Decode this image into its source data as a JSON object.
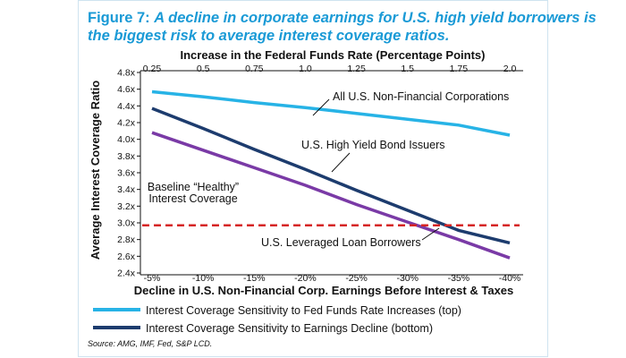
{
  "figure": {
    "title_prefix": "Figure 7: ",
    "title_line1": "A decline in corporate earnings for U.S. high yield borrowers is",
    "title_line2": "the biggest risk to average interest coverage ratios.",
    "source": "Source: AMG, IMF, Fed, S&P LCD."
  },
  "colors": {
    "title": "#1a9ad6",
    "top_series": "#27b3e6",
    "bottom_series": "#1d3c6e",
    "loan_series": "#7a3aa6",
    "baseline": "#d62424",
    "legend_bottom": "#1d3c6e"
  },
  "chart_data": {
    "type": "line",
    "title": "A decline in corporate earnings for U.S. high yield borrowers is the biggest risk to average interest coverage ratios.",
    "x_top": {
      "label": "Increase in the Federal Funds Rate (Percentage Points)",
      "ticks": [
        "0.25",
        "0.5",
        "0.75",
        "1.0",
        "1.25",
        "1.5",
        "1.75",
        "2.0"
      ]
    },
    "x_bottom": {
      "label": "Decline in U.S. Non-Financial Corp. Earnings Before Interest & Taxes",
      "ticks": [
        "-5%",
        "-10%",
        "-15%",
        "-20%",
        "-25%",
        "-30%",
        "-35%",
        "-40%"
      ]
    },
    "y": {
      "label": "Average Interest Coverage Ratio",
      "ticks": [
        "2.4x",
        "2.6x",
        "2.8x",
        "3.0x",
        "3.2x",
        "3.4x",
        "3.6x",
        "3.8x",
        "4.0x",
        "4.2x",
        "4.4x",
        "4.6x",
        "4.8x"
      ],
      "ylim": [
        2.4,
        4.8
      ]
    },
    "series": [
      {
        "name": "All U.S. Non-Financial Corporations",
        "axis": "top",
        "values": [
          4.57,
          4.51,
          4.44,
          4.38,
          4.31,
          4.24,
          4.17,
          4.05
        ]
      },
      {
        "name": "U.S. High Yield Bond Issuers",
        "axis": "bottom",
        "values": [
          4.37,
          4.13,
          3.88,
          3.64,
          3.39,
          3.15,
          2.91,
          2.76
        ]
      },
      {
        "name": "U.S. Leveraged Loan Borrowers",
        "axis": "bottom",
        "values": [
          4.08,
          3.87,
          3.66,
          3.45,
          3.22,
          3.01,
          2.8,
          2.58
        ]
      },
      {
        "name": "Baseline “Healthy” Interest Coverage",
        "axis": "bottom",
        "values": [
          2.97,
          2.97,
          2.97,
          2.97,
          2.97,
          2.97,
          2.97,
          2.97
        ]
      }
    ],
    "annotations": {
      "all_corp": "All U.S. Non-Financial Corporations",
      "hy_bond": "U.S. High Yield Bond Issuers",
      "loan": "U.S. Leveraged Loan Borrowers",
      "baseline_line1": "Baseline “Healthy”",
      "baseline_line2": "Interest Coverage"
    },
    "legend": [
      {
        "label": "Interest Coverage Sensitivity to Fed Funds Rate Increases (top)"
      },
      {
        "label": "Interest Coverage Sensitivity to Earnings Decline (bottom)"
      }
    ],
    "grid": false
  }
}
